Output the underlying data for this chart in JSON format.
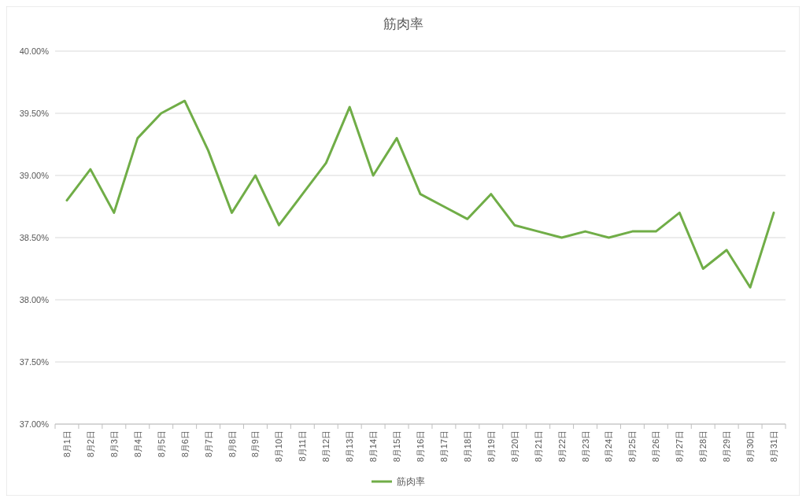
{
  "chart_data": {
    "type": "line",
    "title": "筋肉率",
    "categories": [
      "8月1日",
      "8月2日",
      "8月3日",
      "8月4日",
      "8月5日",
      "8月6日",
      "8月7日",
      "8月8日",
      "8月9日",
      "8月10日",
      "8月11日",
      "8月12日",
      "8月13日",
      "8月14日",
      "8月15日",
      "8月16日",
      "8月17日",
      "8月18日",
      "8月19日",
      "8月20日",
      "8月21日",
      "8月22日",
      "8月23日",
      "8月24日",
      "8月25日",
      "8月26日",
      "8月27日",
      "8月28日",
      "8月29日",
      "8月30日",
      "8月31日"
    ],
    "series": [
      {
        "name": "筋肉率",
        "color": "#70ad47",
        "values": [
          38.8,
          39.05,
          38.7,
          39.3,
          39.5,
          39.6,
          39.2,
          38.7,
          39.0,
          38.6,
          38.85,
          39.1,
          39.55,
          39.0,
          39.3,
          38.85,
          38.75,
          38.65,
          38.85,
          38.6,
          38.55,
          38.5,
          38.55,
          38.5,
          38.55,
          38.55,
          38.7,
          38.25,
          38.4,
          38.1,
          38.7
        ]
      }
    ],
    "ylim": [
      37,
      40
    ],
    "yticks": [
      {
        "value": 37,
        "label": "37.00%"
      },
      {
        "value": 37.5,
        "label": "37.50%"
      },
      {
        "value": 38,
        "label": "38.00%"
      },
      {
        "value": 38.5,
        "label": "38.50%"
      },
      {
        "value": 39,
        "label": "39.00%"
      },
      {
        "value": 39.5,
        "label": "39.50%"
      },
      {
        "value": 40,
        "label": "40.00%"
      }
    ],
    "grid": "y",
    "legend": "bottom",
    "marker": "none",
    "line_style": "solid"
  }
}
